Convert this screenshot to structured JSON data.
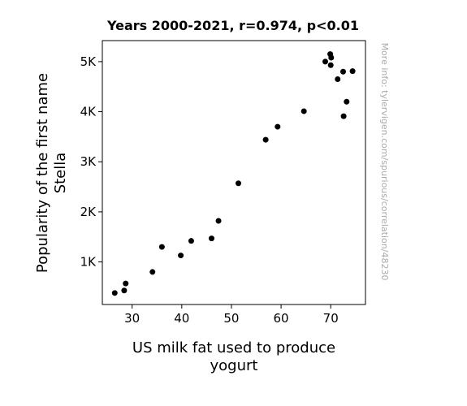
{
  "chart_data": {
    "type": "scatter",
    "title": "Years 2000-2021, r=0.974, p<0.01",
    "xlabel": [
      "US milk fat used to produce",
      "yogurt"
    ],
    "ylabel": [
      "Popularity of the first name",
      "Stella"
    ],
    "xlim": [
      24,
      77
    ],
    "ylim": [
      150,
      5420
    ],
    "x_ticks": [
      {
        "value": 30,
        "label": "30"
      },
      {
        "value": 40,
        "label": "40"
      },
      {
        "value": 50,
        "label": "50"
      },
      {
        "value": 60,
        "label": "60"
      },
      {
        "value": 70,
        "label": "70"
      }
    ],
    "y_ticks": [
      {
        "value": 1000,
        "label": "1K"
      },
      {
        "value": 2000,
        "label": "2K"
      },
      {
        "value": 3000,
        "label": "3K"
      },
      {
        "value": 4000,
        "label": "4K"
      },
      {
        "value": 5000,
        "label": "5K"
      }
    ],
    "points": [
      {
        "x": 26.5,
        "y": 380
      },
      {
        "x": 28.4,
        "y": 430
      },
      {
        "x": 28.7,
        "y": 570
      },
      {
        "x": 34.1,
        "y": 800
      },
      {
        "x": 36.0,
        "y": 1300
      },
      {
        "x": 39.8,
        "y": 1130
      },
      {
        "x": 41.9,
        "y": 1420
      },
      {
        "x": 46.0,
        "y": 1470
      },
      {
        "x": 47.4,
        "y": 1820
      },
      {
        "x": 51.4,
        "y": 2570
      },
      {
        "x": 56.9,
        "y": 3440
      },
      {
        "x": 59.3,
        "y": 3700
      },
      {
        "x": 64.6,
        "y": 4010
      },
      {
        "x": 68.9,
        "y": 5000
      },
      {
        "x": 69.9,
        "y": 5150
      },
      {
        "x": 70.1,
        "y": 5080
      },
      {
        "x": 70.0,
        "y": 4930
      },
      {
        "x": 71.4,
        "y": 4650
      },
      {
        "x": 72.5,
        "y": 4800
      },
      {
        "x": 72.6,
        "y": 3910
      },
      {
        "x": 73.2,
        "y": 4200
      },
      {
        "x": 74.4,
        "y": 4810
      }
    ],
    "marker_color": "#000000",
    "grid": false,
    "legend": "none"
  },
  "side_note": "More info: tylervigen.com/spurious/correlation/48230"
}
